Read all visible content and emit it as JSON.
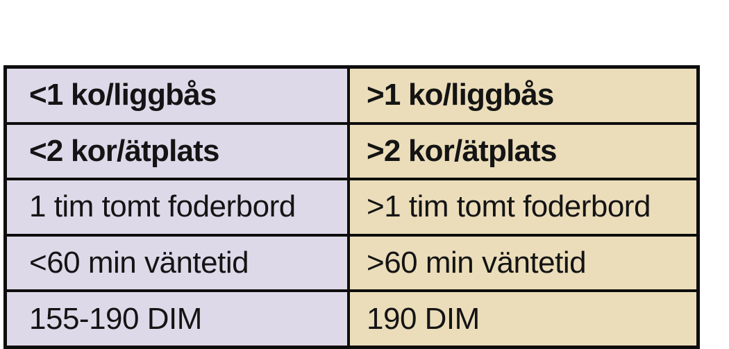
{
  "table": {
    "description": "comparison-table-two-columns",
    "columns": [
      {
        "key": "left",
        "bg": "#ded9e9"
      },
      {
        "key": "right",
        "bg": "#ebddba"
      }
    ],
    "rows": [
      {
        "left": "<1 ko/liggbås",
        "right": ">1 ko/liggbås",
        "bold": true
      },
      {
        "left": "<2 kor/ätplats",
        "right": ">2 kor/ätplats",
        "bold": true
      },
      {
        "left": "1 tim tomt foderbord",
        "right": ">1 tim tomt foderbord",
        "bold": false
      },
      {
        "left": "<60 min väntetid",
        "right": ">60 min väntetid",
        "bold": false
      },
      {
        "left": "155-190 DIM",
        "right": "190 DIM",
        "bold": false
      }
    ]
  },
  "chart_data": {
    "type": "table",
    "columns": [
      "left",
      "right"
    ],
    "rows": [
      [
        "<1 ko/liggbås",
        ">1 ko/liggbås"
      ],
      [
        "<2 kor/ätplats",
        ">2 kor/ätplats"
      ],
      [
        "1 tim tomt foderbord",
        ">1 tim tomt foderbord"
      ],
      [
        "<60 min väntetid",
        ">60 min väntetid"
      ],
      [
        "155-190 DIM",
        "190 DIM"
      ]
    ]
  },
  "colors": {
    "page_background": "#ffffff",
    "left_column_background": "#ded9e9",
    "right_column_background": "#ebddba",
    "gridline": "#0d0d0d",
    "text": "#141414"
  }
}
